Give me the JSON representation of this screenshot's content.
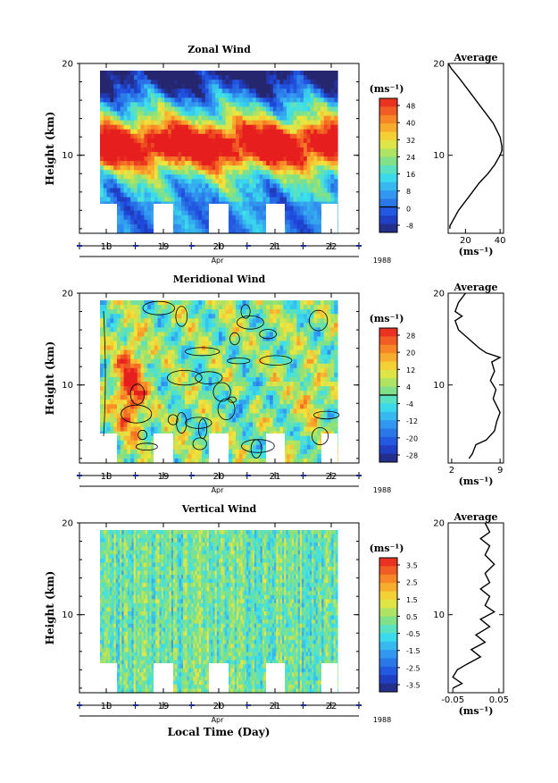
{
  "x_axis": {
    "days": [
      "18",
      "19",
      "20",
      "21",
      "22"
    ],
    "month": "Apr",
    "year": "1988",
    "label": "Local Time (Day)"
  },
  "height_ticks": [
    "20",
    "10"
  ],
  "ylabel": "Height (km)",
  "colorbar_unit": "(ms⁻¹)",
  "profile_unit": "(ms⁻¹)",
  "colors": {
    "deep_blue": "#2a2a7a",
    "blue": "#1f4fd8",
    "light_blue": "#3a9fe8",
    "cyan": "#3fe0e8",
    "green": "#a0e070",
    "yellow": "#f0e040",
    "orange": "#f8a030",
    "red": "#e82020"
  },
  "chart_data": [
    {
      "type": "heatmap",
      "title": "Zonal Wind",
      "ylabel": "Height (km)",
      "ylim": [
        1.5,
        20
      ],
      "colorbar_levels": [
        "48",
        "40",
        "32",
        "24",
        "16",
        "8",
        "0",
        "-8"
      ],
      "profile": {
        "title": "Average",
        "xticks": [
          "20",
          "40"
        ],
        "xlim": [
          10,
          42
        ],
        "ylim": [
          1.5,
          20
        ],
        "x": [
          10,
          12,
          16,
          22,
          30,
          36,
          40,
          41,
          41,
          40,
          37,
          33,
          28,
          22,
          16,
          11,
          11
        ],
        "y": [
          20,
          19.4,
          18.5,
          17,
          15,
          13.5,
          12,
          11,
          10.5,
          10,
          9,
          8,
          7,
          5.5,
          4,
          2.3,
          2
        ]
      },
      "description": "Westerly jet core near 11 km, maxima ~48 m/s; weak or easterly above 17 km"
    },
    {
      "type": "heatmap",
      "title": "Meridional Wind",
      "ylabel": "Height (km)",
      "ylim": [
        1.5,
        20
      ],
      "colorbar_levels": [
        "28",
        "20",
        "12",
        "4",
        "-4",
        "-12",
        "-20",
        "-28"
      ],
      "profile": {
        "title": "Average",
        "xticks": [
          "2",
          "9"
        ],
        "xlim": [
          1.5,
          9.5
        ],
        "ylim": [
          1.5,
          20
        ],
        "x": [
          4,
          3,
          2.5,
          3.5,
          2.5,
          3,
          4.5,
          6,
          7,
          9,
          7.8,
          8.2,
          7.6,
          8.4,
          8,
          9,
          8.5,
          8.2,
          7,
          5.5,
          5,
          4.5
        ],
        "y": [
          20,
          19,
          18,
          17.5,
          17,
          16,
          15,
          14,
          13.5,
          13,
          12.5,
          11.5,
          10.5,
          9.5,
          8.5,
          7,
          6,
          5,
          4,
          3.5,
          2.5,
          2
        ]
      },
      "description": "Strong southerly flow near 10 km on Apr 18; weaker mixed flow elsewhere"
    },
    {
      "type": "heatmap",
      "title": "Vertical Wind",
      "ylabel": "Height (km)",
      "ylim": [
        1.5,
        20
      ],
      "colorbar_levels": [
        "3.5",
        "2.5",
        "1.5",
        "0.5",
        "-0.5",
        "-1.5",
        "-2.5",
        "-3.5"
      ],
      "profile": {
        "title": "Average",
        "xticks": [
          "-0.05",
          "0.05"
        ],
        "xlim": [
          -0.06,
          0.06
        ],
        "ylim": [
          1.5,
          20
        ],
        "x": [
          0.02,
          0.03,
          0.01,
          0.03,
          0.02,
          0.04,
          0.02,
          0.03,
          0.01,
          0.03,
          0.02,
          0.04,
          0.01,
          0.03,
          0.0,
          0.02,
          -0.01,
          0.01,
          -0.02,
          -0.04,
          -0.05,
          -0.03,
          -0.05
        ],
        "y": [
          20,
          19,
          18.3,
          17.5,
          16.5,
          15.5,
          14.5,
          13.5,
          12.8,
          12,
          11,
          10.3,
          9.5,
          8.7,
          7.8,
          7,
          6.2,
          5.4,
          4.6,
          4,
          3.2,
          2.5,
          2
        ]
      },
      "description": "Noisy small-magnitude vertical velocity, mostly -0.5 to 0.5 m/s"
    }
  ]
}
